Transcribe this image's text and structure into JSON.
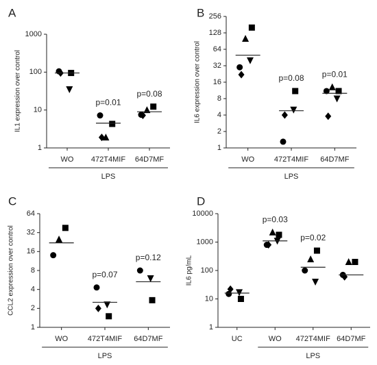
{
  "chart_data": [
    {
      "type": "scatter",
      "panel": "A",
      "ylabel": "IL1 expression over control",
      "yscale": "log",
      "ylim": [
        1,
        1000
      ],
      "yticks": [
        1,
        10,
        100,
        1000
      ],
      "categories": [
        "WO",
        "472T4MIF",
        "64D7MF"
      ],
      "series": [
        {
          "marker": "circle",
          "color": "#000000",
          "values": [
            105,
            7.2,
            7.5
          ]
        },
        {
          "marker": "square",
          "color": "#000000",
          "values": [
            95,
            4.3,
            12.3
          ]
        },
        {
          "marker": "triangle-up",
          "color": "#000000",
          "values": [
            null,
            1.9,
            10
          ]
        },
        {
          "marker": "triangle-down",
          "color": "#000000",
          "values": [
            35,
            null,
            null
          ]
        },
        {
          "marker": "diamond",
          "color": "#000000",
          "values": [
            95,
            1.9,
            7.2
          ]
        }
      ],
      "medians": [
        95,
        4.5,
        9
      ],
      "annotations": [
        null,
        "p=0.01",
        "p=0.08"
      ],
      "group": {
        "label": "LPS",
        "categories": [
          "WO",
          "472T4MIF",
          "64D7MF"
        ]
      }
    },
    {
      "type": "scatter",
      "panel": "B",
      "ylabel": "IL6 expression over control",
      "yscale": "log",
      "ylim": [
        1,
        256
      ],
      "yticks": [
        1,
        2,
        4,
        8,
        16,
        32,
        64,
        128,
        256
      ],
      "categories": [
        "WO",
        "472T4MIF",
        "64D7MF"
      ],
      "series": [
        {
          "marker": "circle",
          "color": "#000000",
          "values": [
            30,
            1.3,
            11
          ]
        },
        {
          "marker": "square",
          "color": "#000000",
          "values": [
            160,
            11,
            11
          ]
        },
        {
          "marker": "triangle-up",
          "color": "#000000",
          "values": [
            100,
            null,
            13
          ]
        },
        {
          "marker": "triangle-down",
          "color": "#000000",
          "values": [
            40,
            5,
            8
          ]
        },
        {
          "marker": "diamond",
          "color": "#000000",
          "values": [
            22,
            4,
            3.8
          ]
        }
      ],
      "medians": [
        50,
        4.8,
        10
      ],
      "annotations": [
        null,
        "p=0.08",
        "p=0.01"
      ],
      "group": {
        "label": "LPS",
        "categories": [
          "WO",
          "472T4MIF",
          "64D7MF"
        ]
      }
    },
    {
      "type": "scatter",
      "panel": "C",
      "ylabel": "CCL2 expression over control",
      "yscale": "log",
      "ylim": [
        1,
        64
      ],
      "yticks": [
        1,
        2,
        4,
        8,
        16,
        32,
        64
      ],
      "categories": [
        "WO",
        "472T4MIF",
        "64D7MF"
      ],
      "series": [
        {
          "marker": "circle",
          "color": "#000000",
          "values": [
            14,
            4.3,
            8
          ]
        },
        {
          "marker": "square",
          "color": "#000000",
          "values": [
            38,
            1.5,
            2.7
          ]
        },
        {
          "marker": "triangle-up",
          "color": "#000000",
          "values": [
            25,
            null,
            null
          ]
        },
        {
          "marker": "triangle-down",
          "color": "#000000",
          "values": [
            null,
            2.3,
            6
          ]
        },
        {
          "marker": "diamond",
          "color": "#000000",
          "values": [
            null,
            2,
            null
          ]
        }
      ],
      "medians": [
        22,
        2.5,
        5.3
      ],
      "annotations": [
        null,
        "p=0.07",
        "p=0.12"
      ],
      "group": {
        "label": "LPS",
        "categories": [
          "WO",
          "472T4MIF",
          "64D7MF"
        ]
      }
    },
    {
      "type": "scatter",
      "panel": "D",
      "ylabel": "IL6 pg/mL",
      "yscale": "log",
      "ylim": [
        1,
        10000
      ],
      "yticks": [
        1,
        10,
        100,
        1000,
        10000
      ],
      "categories": [
        "UC",
        "WO",
        "472T4MIF",
        "64D7MF"
      ],
      "series": [
        {
          "marker": "circle",
          "color": "#000000",
          "values": [
            15,
            800,
            100,
            70
          ]
        },
        {
          "marker": "square",
          "color": "#000000",
          "values": [
            10,
            1800,
            500,
            200
          ]
        },
        {
          "marker": "triangle-up",
          "color": "#000000",
          "values": [
            null,
            2200,
            250,
            200
          ]
        },
        {
          "marker": "triangle-down",
          "color": "#000000",
          "values": [
            17,
            1100,
            40,
            null
          ]
        },
        {
          "marker": "diamond",
          "color": "#000000",
          "values": [
            22,
            800,
            null,
            60
          ]
        }
      ],
      "medians": [
        16,
        1100,
        130,
        70
      ],
      "annotations": [
        null,
        "p=0.03",
        "p=0.02",
        null
      ],
      "group": {
        "label": "LPS",
        "categories": [
          "WO",
          "472T4MIF",
          "64D7MF"
        ]
      }
    }
  ]
}
